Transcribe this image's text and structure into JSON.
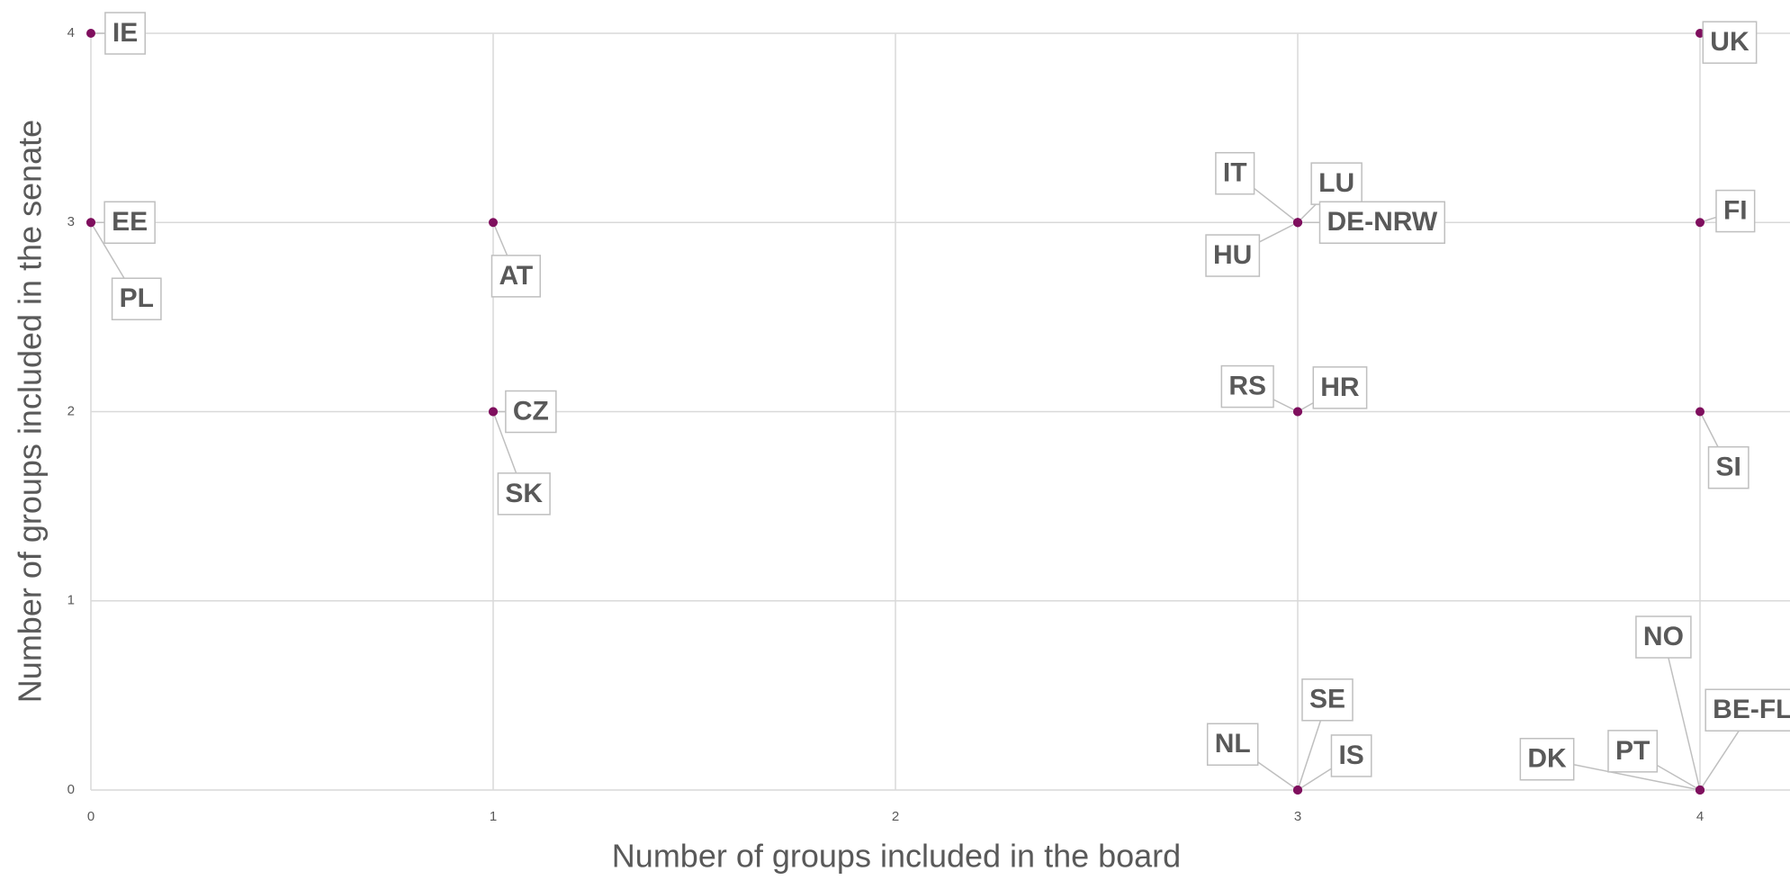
{
  "chart_data": {
    "type": "scatter",
    "x_label": "Number of groups included in the board",
    "y_label": "Number of groups included in the senate",
    "labels": [
      "IE",
      "EE",
      "PL",
      "AT",
      "CZ",
      "SK",
      "IT",
      "LU",
      "DE-NRW",
      "HU",
      "UK",
      "FI",
      "RS",
      "HR",
      "SI",
      "NL",
      "SE",
      "IS",
      "NO",
      "BE-FL",
      "DK",
      "PT"
    ],
    "x": [
      0,
      0,
      0,
      1,
      1,
      1,
      3,
      3,
      3,
      3,
      4,
      4,
      3,
      3,
      4,
      3,
      3,
      3,
      4,
      4,
      4,
      4
    ],
    "y": [
      4,
      3,
      3,
      3,
      2,
      2,
      3,
      3,
      3,
      3,
      4,
      3,
      2,
      2,
      2,
      0,
      0,
      0,
      0,
      0,
      0,
      0
    ],
    "color": "#7f0f5e",
    "xlim": [
      0,
      4
    ],
    "ylim": [
      0,
      4
    ],
    "xticks": [
      0,
      1,
      2,
      3,
      4
    ],
    "yticks": [
      0,
      1,
      2,
      3,
      4
    ],
    "grid": true
  }
}
